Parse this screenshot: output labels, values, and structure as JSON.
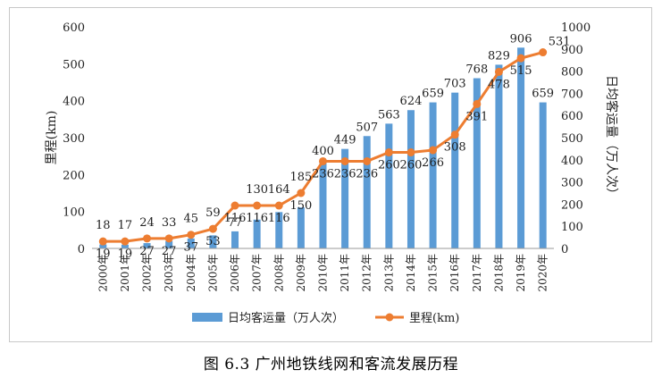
{
  "caption": "图 6.3 广州地铁线网和客流发展历程",
  "chart_data": {
    "type": "bar+line",
    "categories": [
      "2000年",
      "2001年",
      "2002年",
      "2003年",
      "2004年",
      "2005年",
      "2006年",
      "2007年",
      "2008年",
      "2009年",
      "2010年",
      "2011年",
      "2012年",
      "2013年",
      "2014年",
      "2015年",
      "2016年",
      "2017年",
      "2018年",
      "2019年",
      "2020年"
    ],
    "series": [
      {
        "name": "日均客运量（万人次）",
        "type": "bar",
        "axis": "right",
        "color": "#5b9bd5",
        "values": [
          18,
          17,
          24,
          33,
          45,
          59,
          77,
          130,
          164,
          185,
          400,
          449,
          507,
          563,
          624,
          659,
          703,
          768,
          829,
          906,
          659
        ]
      },
      {
        "name": "里程(km)",
        "type": "line",
        "axis": "left",
        "color": "#ed7d31",
        "values": [
          19,
          19,
          27,
          27,
          37,
          53,
          116,
          116,
          116,
          150,
          236,
          236,
          236,
          260,
          260,
          266,
          308,
          391,
          478,
          515,
          531
        ]
      }
    ],
    "ylabel": "里程(km)",
    "ylabel_right": "日均客运量（万人次）",
    "ylim": [
      0,
      600
    ],
    "ylim_right": [
      0,
      1000
    ],
    "yticks": [
      0,
      100,
      200,
      300,
      400,
      500,
      600
    ],
    "yticks_right": [
      0,
      100,
      200,
      300,
      400,
      500,
      600,
      700,
      800,
      900,
      1000
    ],
    "legend_position": "bottom",
    "grid": false
  }
}
